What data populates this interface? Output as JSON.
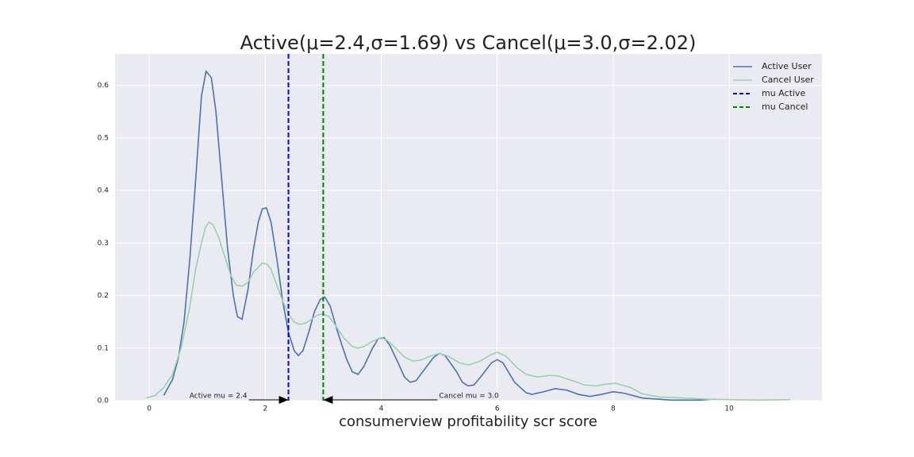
{
  "chart_data": {
    "type": "line",
    "title": "Active(μ=2.4,σ=1.69) vs Cancel(μ=3.0,σ=2.02)",
    "xlabel": "consumerview profitability scr score",
    "xlim": [
      -0.59,
      11.6
    ],
    "ylim": [
      0,
      0.66
    ],
    "xticks": [
      0,
      2,
      4,
      6,
      8,
      10
    ],
    "yticks": [
      {
        "value": 0,
        "label": "0.0"
      },
      0.1,
      0.2,
      0.3,
      0.4,
      0.5,
      0.6
    ],
    "grid": true,
    "legend": "upper right",
    "series": [
      {
        "name": "Active User",
        "color": "#4c72b0",
        "x": [
          0.25,
          0.4,
          0.5,
          0.6,
          0.7,
          0.8,
          0.9,
          0.98,
          1.07,
          1.15,
          1.25,
          1.35,
          1.45,
          1.52,
          1.6,
          1.7,
          1.8,
          1.88,
          1.95,
          2.02,
          2.1,
          2.2,
          2.3,
          2.4,
          2.5,
          2.57,
          2.65,
          2.75,
          2.85,
          2.95,
          3.03,
          3.12,
          3.25,
          3.4,
          3.5,
          3.6,
          3.7,
          3.85,
          3.95,
          4.05,
          4.15,
          4.3,
          4.4,
          4.5,
          4.6,
          4.75,
          4.9,
          5.0,
          5.1,
          5.3,
          5.4,
          5.5,
          5.6,
          5.75,
          5.9,
          6.0,
          6.1,
          6.3,
          6.5,
          6.6,
          6.8,
          7.0,
          7.2,
          7.4,
          7.6,
          7.8,
          8.0,
          8.2,
          8.5,
          9.0,
          9.5,
          9.75
        ],
        "values": [
          0.01,
          0.04,
          0.08,
          0.15,
          0.27,
          0.42,
          0.58,
          0.627,
          0.615,
          0.55,
          0.42,
          0.29,
          0.2,
          0.16,
          0.155,
          0.21,
          0.29,
          0.34,
          0.365,
          0.367,
          0.34,
          0.27,
          0.19,
          0.13,
          0.095,
          0.086,
          0.095,
          0.13,
          0.17,
          0.193,
          0.197,
          0.18,
          0.13,
          0.08,
          0.055,
          0.05,
          0.065,
          0.1,
          0.118,
          0.12,
          0.105,
          0.07,
          0.045,
          0.035,
          0.038,
          0.06,
          0.082,
          0.09,
          0.086,
          0.055,
          0.035,
          0.028,
          0.03,
          0.05,
          0.072,
          0.078,
          0.072,
          0.035,
          0.015,
          0.012,
          0.017,
          0.023,
          0.02,
          0.012,
          0.008,
          0.012,
          0.017,
          0.014,
          0.005,
          0.001,
          0.001,
          0.003
        ]
      },
      {
        "name": "Cancel User",
        "color": "#9ccfaa",
        "x": [
          -0.05,
          0.1,
          0.25,
          0.4,
          0.55,
          0.7,
          0.8,
          0.9,
          0.97,
          1.03,
          1.1,
          1.2,
          1.3,
          1.4,
          1.5,
          1.6,
          1.7,
          1.8,
          1.95,
          2.03,
          2.1,
          2.2,
          2.3,
          2.4,
          2.5,
          2.6,
          2.7,
          2.8,
          2.9,
          3.0,
          3.1,
          3.2,
          3.35,
          3.5,
          3.6,
          3.7,
          3.85,
          4.0,
          4.1,
          4.25,
          4.4,
          4.55,
          4.7,
          4.85,
          5.0,
          5.15,
          5.35,
          5.5,
          5.7,
          5.9,
          6.0,
          6.15,
          6.35,
          6.5,
          6.7,
          6.9,
          7.05,
          7.3,
          7.5,
          7.7,
          7.9,
          8.05,
          8.3,
          8.5,
          8.8,
          9.2,
          9.6,
          10.0,
          10.5,
          11.05
        ],
        "values": [
          0.005,
          0.01,
          0.025,
          0.05,
          0.1,
          0.18,
          0.25,
          0.3,
          0.33,
          0.34,
          0.335,
          0.31,
          0.275,
          0.24,
          0.22,
          0.218,
          0.225,
          0.245,
          0.262,
          0.26,
          0.25,
          0.22,
          0.19,
          0.165,
          0.15,
          0.145,
          0.148,
          0.155,
          0.163,
          0.165,
          0.16,
          0.145,
          0.12,
          0.103,
          0.1,
          0.103,
          0.113,
          0.12,
          0.115,
          0.1,
          0.083,
          0.075,
          0.078,
          0.085,
          0.09,
          0.085,
          0.072,
          0.068,
          0.075,
          0.088,
          0.092,
          0.085,
          0.062,
          0.05,
          0.045,
          0.048,
          0.047,
          0.038,
          0.03,
          0.028,
          0.032,
          0.033,
          0.025,
          0.013,
          0.007,
          0.005,
          0.003,
          0.002,
          0.001,
          0.002
        ]
      }
    ],
    "vlines": [
      {
        "name": "mu Active",
        "color": "#0000ff",
        "x": 2.4
      },
      {
        "name": "mu Cancel",
        "color": "#008000",
        "x": 3.0
      }
    ],
    "annotations": [
      {
        "text": "Active mu = 2.4"
      },
      {
        "text": "Cancel mu = 3.0"
      }
    ]
  }
}
